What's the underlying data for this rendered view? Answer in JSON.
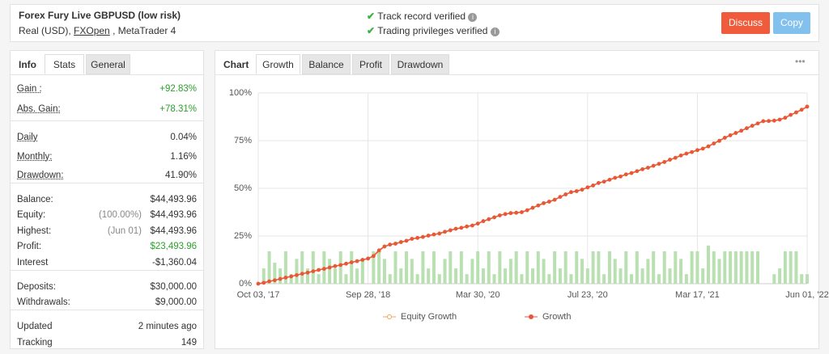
{
  "header": {
    "title": "Forex Fury Live GBPUSD (low risk)",
    "account": "Real (USD),",
    "broker": "FXOpen",
    "platform": ", MetaTrader 4",
    "verified": [
      "Track record verified",
      "Trading privileges verified"
    ],
    "buttons": [
      "Discuss",
      "Copy"
    ]
  },
  "left_tabs": [
    "Info",
    "Stats",
    "General"
  ],
  "stats": [
    [
      {
        "label": "Gain :",
        "value": "+92.83%",
        "color": "#2ca02c"
      },
      {
        "label": "Abs. Gain:",
        "value": "+78.31%",
        "color": "#2ca02c"
      }
    ],
    [
      {
        "label": "Daily",
        "value": "0.04%"
      },
      {
        "label": "Monthly:",
        "value": "1.16%"
      },
      {
        "label": "Drawdown:",
        "value": "41.90%"
      }
    ],
    [
      {
        "label": "Balance:",
        "value": "$44,493.96"
      },
      {
        "label": "Equity:",
        "note": "(100.00%)",
        "value": "$44,493.96"
      },
      {
        "label": "Highest:",
        "note": "(Jun 01)",
        "value": "$44,493.96"
      },
      {
        "label": "Profit:",
        "value": "$23,493.96",
        "color": "#2ca02c"
      },
      {
        "label": "Interest",
        "value": "-$1,360.04"
      }
    ],
    [
      {
        "label": "Deposits:",
        "value": "$30,000.00"
      },
      {
        "label": "Withdrawals:",
        "value": "$9,000.00"
      }
    ],
    [
      {
        "label": "Updated",
        "value": "2 minutes ago"
      },
      {
        "label": "Tracking",
        "value": "149"
      }
    ]
  ],
  "chart_tabs": {
    "heading": "Chart",
    "tabs": [
      "Growth",
      "Balance",
      "Profit",
      "Drawdown"
    ],
    "menu": "•••"
  },
  "chart_data": {
    "type": "line",
    "categories": [
      "Oct 03, '17",
      null,
      null,
      null,
      null,
      null,
      null,
      null,
      null,
      null,
      null,
      null,
      null,
      null,
      null,
      null,
      null,
      null,
      null,
      null,
      "Sep 28, '18",
      null,
      null,
      null,
      null,
      null,
      null,
      null,
      null,
      null,
      null,
      null,
      null,
      null,
      null,
      null,
      null,
      null,
      null,
      null,
      "Mar 30, '20",
      null,
      null,
      null,
      null,
      null,
      null,
      null,
      null,
      null,
      null,
      null,
      null,
      null,
      null,
      null,
      null,
      null,
      null,
      null,
      "Jul 23, '20",
      null,
      null,
      null,
      null,
      null,
      null,
      null,
      null,
      null,
      null,
      null,
      null,
      null,
      null,
      null,
      null,
      null,
      null,
      null,
      "Mar 17, '21",
      null,
      null,
      null,
      null,
      null,
      null,
      null,
      null,
      null,
      null,
      null,
      null,
      null,
      null,
      null,
      null,
      null,
      null,
      null,
      "Jun 01, '22"
    ],
    "series": [
      {
        "name": "Equity Growth",
        "color": "#f0a55a",
        "values": [
          0,
          0.5,
          1.2,
          1.8,
          2.5,
          3.2,
          3.8,
          4.5,
          5.2,
          5.8,
          6.5,
          7.2,
          7.8,
          8.5,
          9.2,
          9.8,
          10.5,
          11.2,
          11.8,
          12.5,
          13.2,
          14.5,
          17.0,
          19.5,
          20.5,
          21.0,
          21.8,
          22.5,
          23.5,
          24.0,
          24.5,
          25.2,
          25.8,
          26.3,
          27.2,
          28.0,
          28.8,
          29.3,
          30.0,
          30.5,
          31.5,
          32.8,
          33.8,
          34.8,
          35.8,
          36.5,
          37.0,
          37.2,
          37.5,
          38.5,
          39.8,
          41.0,
          42.2,
          43.0,
          44.0,
          45.5,
          46.8,
          48.0,
          48.5,
          49.3,
          50.5,
          51.5,
          52.8,
          53.5,
          54.5,
          55.5,
          56.2,
          57.3,
          58.0,
          59.0,
          60.0,
          60.8,
          61.8,
          62.8,
          63.8,
          65.0,
          66.0,
          67.2,
          68.2,
          69.0,
          70.0,
          70.8,
          72.0,
          73.5,
          74.8,
          76.5,
          77.8,
          79.0,
          80.2,
          81.5,
          82.8,
          84.0,
          85.2,
          85.3,
          85.5,
          86.0,
          87.0,
          88.5,
          89.8,
          91.2,
          92.83
        ]
      },
      {
        "name": "Growth",
        "color": "#e8573a",
        "values": [
          0,
          0.5,
          1.2,
          1.8,
          2.5,
          3.2,
          3.8,
          4.5,
          5.2,
          5.8,
          6.5,
          7.2,
          7.8,
          8.5,
          9.2,
          9.8,
          10.5,
          11.2,
          11.8,
          12.5,
          13.2,
          14.5,
          17.5,
          19.5,
          20.5,
          21.0,
          21.8,
          22.5,
          23.5,
          24.0,
          24.5,
          25.2,
          25.8,
          26.3,
          27.2,
          28.0,
          28.8,
          29.3,
          30.0,
          30.5,
          31.5,
          32.8,
          33.8,
          34.8,
          35.8,
          36.5,
          37.0,
          37.2,
          37.5,
          38.5,
          39.8,
          41.0,
          42.2,
          43.0,
          44.0,
          45.5,
          46.8,
          48.0,
          48.5,
          49.3,
          50.5,
          51.5,
          52.8,
          53.5,
          54.5,
          55.5,
          56.2,
          57.3,
          58.0,
          59.0,
          60.0,
          60.8,
          61.8,
          62.8,
          63.8,
          65.0,
          66.0,
          67.2,
          68.2,
          69.0,
          70.0,
          70.8,
          72.0,
          73.5,
          75.0,
          76.5,
          77.8,
          79.0,
          80.2,
          81.5,
          82.8,
          84.0,
          85.2,
          85.3,
          85.5,
          86.0,
          87.0,
          88.5,
          89.8,
          91.2,
          92.83
        ]
      }
    ],
    "bars": {
      "color": "#b8e0b0",
      "values": [
        0,
        8,
        17,
        11,
        8,
        17,
        5,
        13,
        17,
        8,
        17,
        5,
        17,
        13,
        8,
        17,
        5,
        17,
        8,
        13,
        0,
        17,
        17,
        13,
        5,
        17,
        8,
        17,
        13,
        5,
        17,
        8,
        17,
        5,
        13,
        17,
        8,
        17,
        5,
        13,
        17,
        8,
        17,
        5,
        17,
        8,
        13,
        17,
        5,
        17,
        8,
        17,
        13,
        5,
        17,
        8,
        17,
        5,
        17,
        13,
        8,
        17,
        17,
        5,
        17,
        13,
        8,
        17,
        5,
        17,
        8,
        13,
        17,
        5,
        17,
        8,
        17,
        13,
        5,
        17,
        17,
        8,
        20,
        17,
        13,
        17,
        17,
        17,
        17,
        17,
        17,
        17,
        0,
        0,
        5,
        8,
        17,
        17,
        17,
        5,
        5
      ]
    },
    "ylim": [
      0,
      100
    ],
    "yticks": [
      {
        "value": 0,
        "label": "0%"
      },
      {
        "value": 25,
        "label": "25%"
      },
      {
        "value": 50,
        "label": "50%"
      },
      {
        "value": 75,
        "label": "75%"
      },
      {
        "value": 100,
        "label": "100%"
      }
    ],
    "grid": true
  }
}
